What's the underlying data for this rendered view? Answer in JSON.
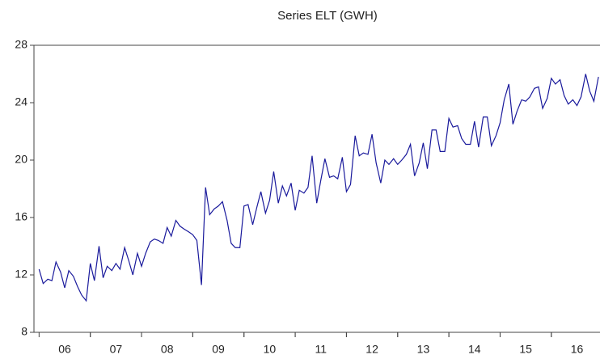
{
  "chart_data": {
    "type": "line",
    "title": "Series ELT (GWH)",
    "x": [
      6.0,
      6.08,
      6.17,
      6.25,
      6.33,
      6.42,
      6.5,
      6.58,
      6.67,
      6.75,
      6.83,
      6.92,
      7.0,
      7.08,
      7.17,
      7.25,
      7.33,
      7.42,
      7.5,
      7.58,
      7.67,
      7.75,
      7.83,
      7.92,
      8.0,
      8.08,
      8.17,
      8.25,
      8.33,
      8.42,
      8.5,
      8.58,
      8.67,
      8.75,
      8.83,
      8.92,
      9.0,
      9.08,
      9.17,
      9.25,
      9.33,
      9.42,
      9.5,
      9.58,
      9.67,
      9.75,
      9.83,
      9.92,
      10.0,
      10.08,
      10.17,
      10.25,
      10.33,
      10.42,
      10.5,
      10.58,
      10.67,
      10.75,
      10.83,
      10.92,
      11.0,
      11.08,
      11.17,
      11.25,
      11.33,
      11.42,
      11.5,
      11.58,
      11.67,
      11.75,
      11.83,
      11.92,
      12.0,
      12.08,
      12.17,
      12.25,
      12.33,
      12.42,
      12.5,
      12.58,
      12.67,
      12.75,
      12.83,
      12.92,
      13.0,
      13.08,
      13.17,
      13.25,
      13.33,
      13.42,
      13.5,
      13.58,
      13.67,
      13.75,
      13.83,
      13.92,
      14.0,
      14.08,
      14.17,
      14.25,
      14.33,
      14.42,
      14.5,
      14.58,
      14.67,
      14.75,
      14.83,
      14.92,
      15.0,
      15.08,
      15.17,
      15.25,
      15.33,
      15.42,
      15.5,
      15.58,
      15.67,
      15.75,
      15.83,
      15.92,
      16.0,
      16.08,
      16.17,
      16.25,
      16.33,
      16.42,
      16.5,
      16.58,
      16.67,
      16.75,
      16.83,
      16.92
    ],
    "series": [
      {
        "name": "ELT",
        "color": "#1a1a9c",
        "values": [
          12.4,
          11.4,
          11.7,
          11.6,
          12.9,
          12.2,
          11.1,
          12.3,
          11.9,
          11.2,
          10.6,
          10.2,
          12.8,
          11.6,
          14.0,
          11.8,
          12.6,
          12.3,
          12.8,
          12.4,
          13.9,
          13.0,
          12.0,
          13.5,
          12.6,
          13.5,
          14.3,
          14.5,
          14.4,
          14.2,
          15.3,
          14.7,
          15.8,
          15.4,
          15.2,
          15.0,
          14.8,
          14.4,
          11.3,
          18.1,
          16.2,
          16.6,
          16.8,
          17.1,
          15.8,
          14.2,
          13.9,
          13.9,
          16.8,
          16.9,
          15.5,
          16.7,
          17.8,
          16.3,
          17.2,
          19.2,
          17.0,
          18.2,
          17.5,
          18.4,
          16.5,
          17.9,
          17.7,
          18.1,
          20.3,
          17.0,
          18.6,
          20.1,
          18.8,
          18.9,
          18.7,
          20.2,
          17.8,
          18.3,
          21.7,
          20.3,
          20.5,
          20.4,
          21.8,
          19.8,
          18.4,
          20.0,
          19.7,
          20.1,
          19.7,
          20.0,
          20.4,
          21.1,
          18.9,
          19.8,
          21.2,
          19.4,
          22.1,
          22.1,
          20.6,
          20.6,
          22.9,
          22.3,
          22.4,
          21.5,
          21.1,
          21.1,
          22.7,
          20.9,
          23.0,
          23.0,
          21.0,
          21.7,
          22.6,
          24.2,
          25.3,
          22.5,
          23.4,
          24.2,
          24.1,
          24.4,
          25.0,
          25.1,
          23.6,
          24.3,
          25.7,
          25.3,
          25.6,
          24.5,
          23.9,
          24.2,
          23.8,
          24.4,
          26.0,
          24.8,
          24.1,
          25.8
        ]
      }
    ],
    "xlim": [
      5.9,
      16.95
    ],
    "xticks": [
      {
        "value": 6.5,
        "label": "06"
      },
      {
        "value": 7.5,
        "label": "07"
      },
      {
        "value": 8.5,
        "label": "08"
      },
      {
        "value": 9.5,
        "label": "09"
      },
      {
        "value": 10.5,
        "label": "10"
      },
      {
        "value": 11.5,
        "label": "11"
      },
      {
        "value": 12.5,
        "label": "12"
      },
      {
        "value": 13.5,
        "label": "13"
      },
      {
        "value": 14.5,
        "label": "14"
      },
      {
        "value": 15.5,
        "label": "15"
      },
      {
        "value": 16.5,
        "label": "16"
      }
    ],
    "ylim": [
      8,
      28
    ],
    "yticks": [
      8,
      12,
      16,
      20,
      24,
      28
    ],
    "grid": false
  }
}
